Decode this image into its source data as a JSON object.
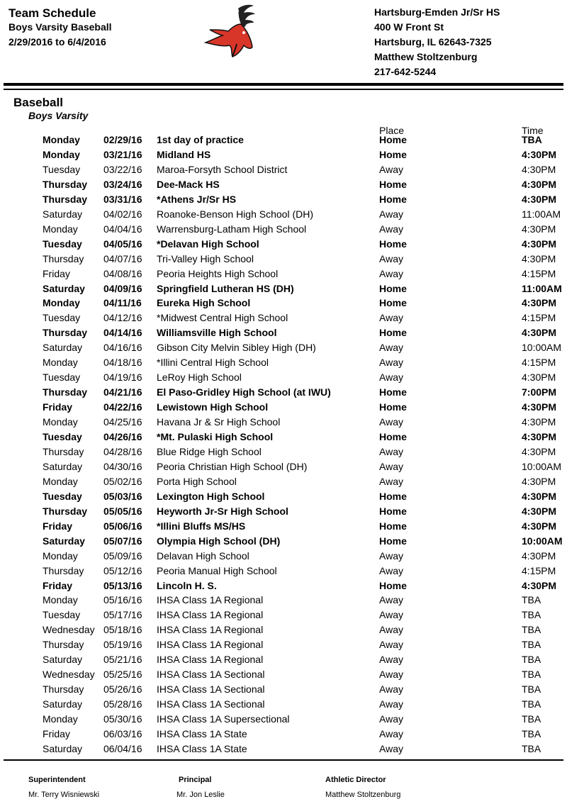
{
  "header": {
    "title": "Team Schedule",
    "subtitle": "Boys Varsity Baseball",
    "date_range": "2/29/2016 to 6/4/2016",
    "school": "Hartsburg-Emden Jr/Sr HS",
    "address": "400 W Front St",
    "city": "Hartsburg, IL  62643-7325",
    "contact": "Matthew Stoltzenburg",
    "phone": "217-642-5244",
    "logo": "deer-mascot-logo",
    "logo_color": "#d9362a"
  },
  "section": {
    "sport": "Baseball",
    "level": "Boys Varsity",
    "place_header": "Place",
    "time_header": "Time"
  },
  "rows": [
    [
      "Monday",
      "02/29/16",
      "1st day of practice",
      "Home",
      "TBA",
      true
    ],
    [
      "Monday",
      "03/21/16",
      "Midland HS",
      "Home",
      "4:30PM",
      true
    ],
    [
      "Tuesday",
      "03/22/16",
      "Maroa-Forsyth School District",
      "Away",
      "4:30PM",
      false
    ],
    [
      "Thursday",
      "03/24/16",
      "Dee-Mack HS",
      "Home",
      "4:30PM",
      true
    ],
    [
      "Thursday",
      "03/31/16",
      "*Athens Jr/Sr HS",
      "Home",
      "4:30PM",
      true
    ],
    [
      "Saturday",
      "04/02/16",
      "Roanoke-Benson High School (DH)",
      "Away",
      "11:00AM",
      false
    ],
    [
      "Monday",
      "04/04/16",
      "Warrensburg-Latham High School",
      "Away",
      "4:30PM",
      false
    ],
    [
      "Tuesday",
      "04/05/16",
      "*Delavan High School",
      "Home",
      "4:30PM",
      true
    ],
    [
      "Thursday",
      "04/07/16",
      "Tri-Valley High School",
      "Away",
      "4:30PM",
      false
    ],
    [
      "Friday",
      "04/08/16",
      "Peoria Heights High School",
      "Away",
      "4:15PM",
      false
    ],
    [
      "Saturday",
      "04/09/16",
      "Springfield Lutheran HS (DH)",
      "Home",
      "11:00AM",
      true
    ],
    [
      "Monday",
      "04/11/16",
      "Eureka High School",
      "Home",
      "4:30PM",
      true
    ],
    [
      "Tuesday",
      "04/12/16",
      "*Midwest Central High School",
      "Away",
      "4:15PM",
      false
    ],
    [
      "Thursday",
      "04/14/16",
      "Williamsville High School",
      "Home",
      "4:30PM",
      true
    ],
    [
      "Saturday",
      "04/16/16",
      "Gibson City Melvin Sibley High (DH)",
      "Away",
      "10:00AM",
      false
    ],
    [
      "Monday",
      "04/18/16",
      "*Illini Central High School",
      "Away",
      "4:15PM",
      false
    ],
    [
      "Tuesday",
      "04/19/16",
      "LeRoy High School",
      "Away",
      "4:30PM",
      false
    ],
    [
      "Thursday",
      "04/21/16",
      "El Paso-Gridley High School (at IWU)",
      "Home",
      "7:00PM",
      true
    ],
    [
      "Friday",
      "04/22/16",
      "Lewistown High School",
      "Home",
      "4:30PM",
      true
    ],
    [
      "Monday",
      "04/25/16",
      "Havana Jr & Sr High School",
      "Away",
      "4:30PM",
      false
    ],
    [
      "Tuesday",
      "04/26/16",
      "*Mt. Pulaski High School",
      "Home",
      "4:30PM",
      true
    ],
    [
      "Thursday",
      "04/28/16",
      "Blue Ridge High School",
      "Away",
      "4:30PM",
      false
    ],
    [
      "Saturday",
      "04/30/16",
      "Peoria Christian High School (DH)",
      "Away",
      "10:00AM",
      false
    ],
    [
      "Monday",
      "05/02/16",
      "Porta High School",
      "Away",
      "4:30PM",
      false
    ],
    [
      "Tuesday",
      "05/03/16",
      "Lexington High School",
      "Home",
      "4:30PM",
      true
    ],
    [
      "Thursday",
      "05/05/16",
      "Heyworth Jr-Sr High School",
      "Home",
      "4:30PM",
      true
    ],
    [
      "Friday",
      "05/06/16",
      "*Illini Bluffs MS/HS",
      "Home",
      "4:30PM",
      true
    ],
    [
      "Saturday",
      "05/07/16",
      "Olympia High School (DH)",
      "Home",
      "10:00AM",
      true
    ],
    [
      "Monday",
      "05/09/16",
      "Delavan High School",
      "Away",
      "4:30PM",
      false
    ],
    [
      "Thursday",
      "05/12/16",
      "Peoria Manual High School",
      "Away",
      "4:15PM",
      false
    ],
    [
      "Friday",
      "05/13/16",
      "Lincoln H. S.",
      "Home",
      "4:30PM",
      true
    ],
    [
      "Monday",
      "05/16/16",
      "IHSA Class 1A Regional",
      "Away",
      "TBA",
      false
    ],
    [
      "Tuesday",
      "05/17/16",
      "IHSA Class 1A Regional",
      "Away",
      "TBA",
      false
    ],
    [
      "Wednesday",
      "05/18/16",
      "IHSA Class 1A Regional",
      "Away",
      "TBA",
      false
    ],
    [
      "Thursday",
      "05/19/16",
      "IHSA Class 1A Regional",
      "Away",
      "TBA",
      false
    ],
    [
      "Saturday",
      "05/21/16",
      "IHSA Class 1A Regional",
      "Away",
      "TBA",
      false
    ],
    [
      "Wednesday",
      "05/25/16",
      "IHSA Class 1A Sectional",
      "Away",
      "TBA",
      false
    ],
    [
      "Thursday",
      "05/26/16",
      "IHSA Class 1A Sectional",
      "Away",
      "TBA",
      false
    ],
    [
      "Saturday",
      "05/28/16",
      "IHSA Class 1A Sectional",
      "Away",
      "TBA",
      false
    ],
    [
      "Monday",
      "05/30/16",
      "IHSA Class 1A Supersectional",
      "Away",
      "TBA",
      false
    ],
    [
      "Friday",
      "06/03/16",
      "IHSA Class 1A State",
      "Away",
      "TBA",
      false
    ],
    [
      "Saturday",
      "06/04/16",
      "IHSA Class 1A State",
      "Away",
      "TBA",
      false
    ]
  ],
  "footer": {
    "superintendent_label": "Superintendent",
    "superintendent": "Mr. Terry Wisniewski",
    "principal_label": "Principal",
    "principal": "Mr. Jon Leslie",
    "ad_label": "Athletic Director",
    "ad": "Matthew Stoltzenburg"
  }
}
